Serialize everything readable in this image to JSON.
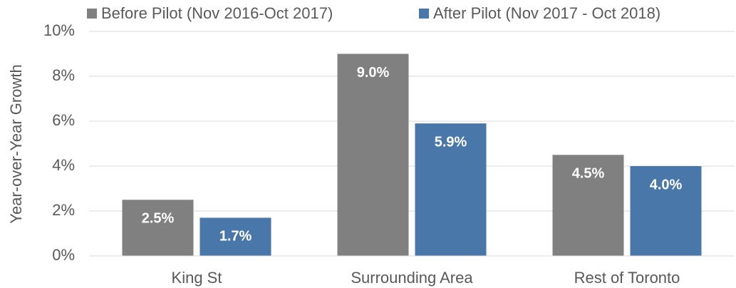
{
  "chart_data": {
    "type": "bar",
    "y_label": "Year-over-Year Growth",
    "categories": [
      "King St",
      "Surrounding Area",
      "Rest of Toronto"
    ],
    "series": [
      {
        "name": "Before Pilot (Nov 2016-Oct 2017)",
        "color": "#808080",
        "values": [
          2.5,
          9.0,
          4.5
        ],
        "value_labels": [
          "2.5%",
          "9.0%",
          "4.5%"
        ]
      },
      {
        "name": "After Pilot (Nov 2017 - Oct 2018)",
        "color": "#4a77aa",
        "values": [
          1.7,
          5.9,
          4.0
        ],
        "value_labels": [
          "1.7%",
          "5.9%",
          "4.0%"
        ]
      }
    ],
    "ylim": [
      0,
      10
    ],
    "yticks": [
      {
        "value": 0,
        "label": "0%"
      },
      {
        "value": 2,
        "label": "2%"
      },
      {
        "value": 4,
        "label": "4%"
      },
      {
        "value": 6,
        "label": "6%"
      },
      {
        "value": 8,
        "label": "8%"
      },
      {
        "value": 10,
        "label": "10%"
      }
    ],
    "grid": true,
    "legend": "top"
  }
}
